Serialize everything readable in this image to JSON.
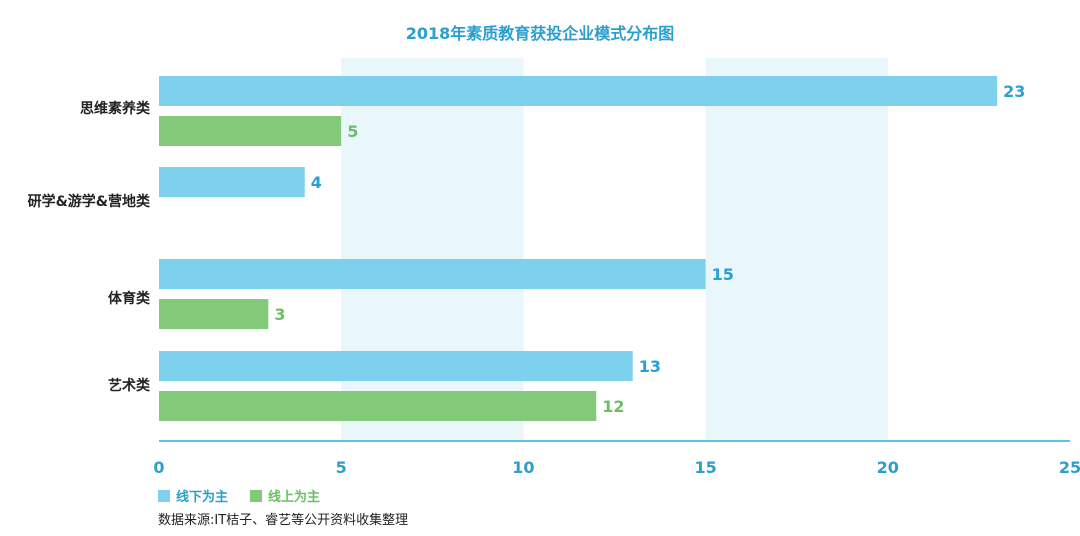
{
  "chart_data": {
    "type": "bar",
    "orientation": "horizontal",
    "title": "2018年素质教育获投企业模式分布图",
    "categories": [
      "思维素养类",
      "研学&游学&营地类",
      "体育类",
      "艺术类"
    ],
    "series": [
      {
        "name": "线下为主",
        "color": "#7dd1ec",
        "values": [
          23,
          4,
          15,
          13
        ]
      },
      {
        "name": "线上为主",
        "color": "#82c97a",
        "values": [
          5,
          null,
          3,
          12
        ]
      }
    ],
    "x_ticks": [
      "0",
      "5",
      "10",
      "15",
      "20",
      "25"
    ],
    "xlim": [
      0,
      25
    ],
    "xlabel": "",
    "ylabel": "",
    "grid": "alternating vertical bands",
    "legend_position": "bottom-left",
    "source": "数据来源:IT桔子、睿艺等公开资料收集整理"
  },
  "colors": {
    "title": "#2a9fd0",
    "axis": "#5bc3e6",
    "band": "#e9f6fc",
    "offline": "#7dd1ec",
    "online": "#82c97a",
    "offline_label": "#2a9fd0",
    "online_label": "#6cbf64"
  }
}
